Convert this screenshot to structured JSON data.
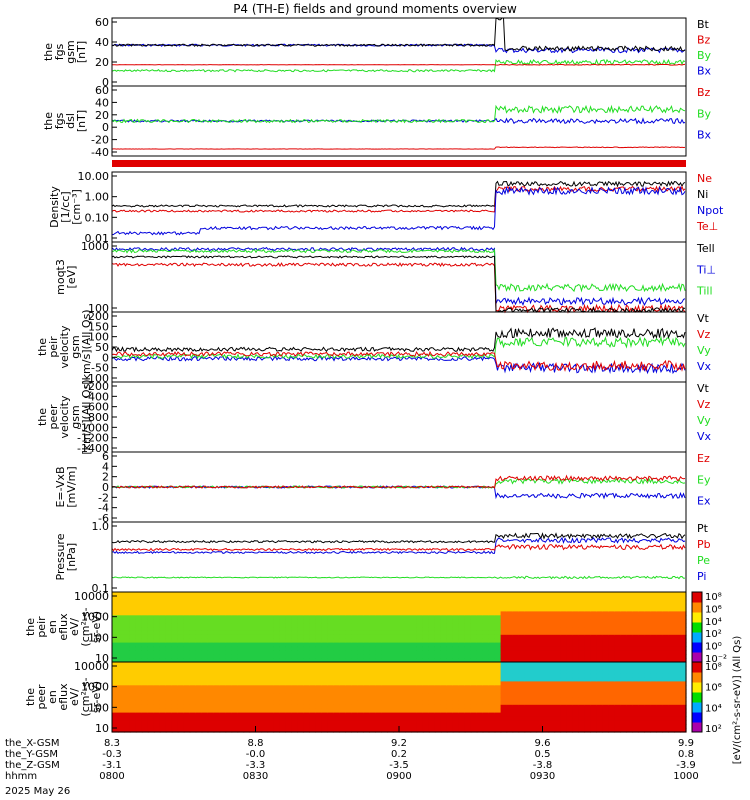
{
  "title": "P4 (TH-E) fields and ground moments overview",
  "date_label": "2025 May 26",
  "colors": {
    "black": "#000000",
    "red": "#e00000",
    "green": "#22dd22",
    "blue": "#0000dd"
  },
  "chart_data": [
    {
      "type": "line",
      "name_key": "fgs_gsm",
      "ylabel": [
        "the",
        "fgs",
        "gsm",
        "[nT]"
      ],
      "ylim": [
        -20,
        60
      ],
      "yticks": [
        "60",
        "40",
        "20",
        "0"
      ],
      "legend": [
        "Bt",
        "Bz",
        "By",
        "Bx"
      ],
      "legend_colors": [
        "black",
        "red",
        "green",
        "blue"
      ],
      "series": [
        {
          "name": "Bt",
          "levels_before": 28,
          "levels_after": 22,
          "spike": 62
        },
        {
          "name": "Bz",
          "levels_before": 5,
          "levels_after": 5
        },
        {
          "name": "By",
          "levels_before": -2,
          "levels_after": 8
        },
        {
          "name": "Bx",
          "levels_before": -1,
          "levels_after": 15
        }
      ]
    },
    {
      "type": "line",
      "name_key": "fgs_dsl",
      "ylabel": [
        "the",
        "fgs",
        "dsl",
        "[nT]"
      ],
      "ylim": [
        -60,
        60
      ],
      "yticks": [
        "60",
        "40",
        "20",
        "0",
        "-20",
        "-40"
      ],
      "legend": [
        "Bz",
        "By",
        "Bx"
      ],
      "legend_colors": [
        "red",
        "green",
        "blue"
      ],
      "series": [
        {
          "name": "Bz",
          "levels_before": -48,
          "levels_after": -45
        },
        {
          "name": "By",
          "levels_before": 0,
          "levels_after": 20
        },
        {
          "name": "Bx",
          "levels_before": 0,
          "levels_after": 0
        }
      ]
    },
    {
      "type": "line",
      "name_key": "density",
      "ylabel": [
        "Density",
        "[1/cc]",
        "[cm⁻³]"
      ],
      "ylim": [
        0.003,
        40
      ],
      "log": true,
      "yticks": [
        "10.00",
        "1.00",
        "0.10",
        "0.01"
      ],
      "legend": [
        "Ne",
        "Ni",
        "Npot",
        "Te⊥"
      ],
      "legend_colors": [
        "red",
        "black",
        "blue",
        "red"
      ]
    },
    {
      "type": "line",
      "name_key": "temperature",
      "ylabel": [
        "moqt3",
        "[eV]"
      ],
      "ylim": [
        40,
        4000
      ],
      "log": true,
      "yticks": [
        "1000",
        "100"
      ],
      "legend": [
        "Tell",
        "Ti⊥",
        "Till"
      ],
      "legend_colors": [
        "black",
        "blue",
        "green"
      ]
    },
    {
      "type": "line",
      "name_key": "peir_velocity",
      "ylabel": [
        "the",
        "peir",
        "velocity",
        "gsm",
        "[km/s](All Qs)"
      ],
      "ylim": [
        -100,
        200
      ],
      "yticks": [
        "200",
        "150",
        "100",
        "50",
        "0",
        "-50",
        "-100"
      ],
      "legend": [
        "Vt",
        "Vz",
        "Vy",
        "Vx"
      ],
      "legend_colors": [
        "black",
        "red",
        "green",
        "blue"
      ]
    },
    {
      "type": "line",
      "name_key": "peer_velocity",
      "ylabel": [
        "the",
        "peer",
        "velocity",
        "gsm",
        "[km/s](All Qs)"
      ],
      "ylim": [
        -1500,
        -200
      ],
      "yticks": [
        "-200",
        "-400",
        "-600",
        "-800",
        "-1000",
        "-1200",
        "-1400"
      ],
      "legend": [
        "Vt",
        "Vz",
        "Vy",
        "Vx"
      ],
      "legend_colors": [
        "black",
        "red",
        "green",
        "blue"
      ]
    },
    {
      "type": "line",
      "name_key": "efield",
      "ylabel": [
        "E=-VxB",
        "[mV/m]"
      ],
      "ylim": [
        -6,
        6
      ],
      "yticks": [
        "6",
        "4",
        "2",
        "0",
        "-2",
        "-4",
        "-6"
      ],
      "legend": [
        "Ez",
        "Ey",
        "Ex"
      ],
      "legend_colors": [
        "red",
        "green",
        "blue"
      ]
    },
    {
      "type": "line",
      "name_key": "pressure",
      "ylabel": [
        "Pressure",
        "[nPa]"
      ],
      "ylim": [
        0.01,
        2
      ],
      "log": true,
      "yticks": [
        "1.0",
        "0.1"
      ],
      "legend": [
        "Pt",
        "Pb",
        "Pe",
        "Pi"
      ],
      "legend_colors": [
        "black",
        "red",
        "green",
        "blue"
      ]
    },
    {
      "type": "heatmap",
      "name_key": "peir_eflux",
      "ylabel": [
        "the",
        "peir",
        "en",
        "eflux",
        "eV/",
        "(cm²-s-",
        "sr-eV)"
      ],
      "log": true,
      "yticks": [
        "10000",
        "1000",
        "100",
        "10"
      ],
      "colorbar": {
        "label": "[eV/(cm²-s-sr-eV)](All Qs)",
        "ticks": [
          "10⁸",
          "10⁶",
          "10⁴",
          "10²",
          "10⁰",
          "10⁻²"
        ]
      }
    },
    {
      "type": "heatmap",
      "name_key": "peer_eflux",
      "ylabel": [
        "the",
        "peer",
        "en",
        "eflux",
        "eV/",
        "(cm²-s-",
        "sr-eV)"
      ],
      "log": true,
      "yticks": [
        "10000",
        "1000",
        "100",
        "10"
      ],
      "colorbar": {
        "label": "[eV/(cm²-s-sr-eV)](All Qs)",
        "ticks": [
          "10⁸",
          "10⁶",
          "10⁴",
          "10²"
        ]
      }
    }
  ],
  "x_axis": {
    "rows": [
      {
        "label": "the_X-GSM",
        "values": [
          "8.3",
          "8.8",
          "9.2",
          "9.6",
          "9.9"
        ]
      },
      {
        "label": "the_Y-GSM",
        "values": [
          "-0.3",
          "-0.0",
          "0.2",
          "0.5",
          "0.8"
        ]
      },
      {
        "label": "the_Z-GSM",
        "values": [
          "-3.1",
          "-3.3",
          "-3.5",
          "-3.8",
          "-3.9"
        ]
      },
      {
        "label": "hhmm",
        "values": [
          "0800",
          "0830",
          "0900",
          "0930",
          "1000"
        ]
      }
    ]
  },
  "colorbar_units": "[eV/(cm²-s-sr-eV)] (All Qs)"
}
